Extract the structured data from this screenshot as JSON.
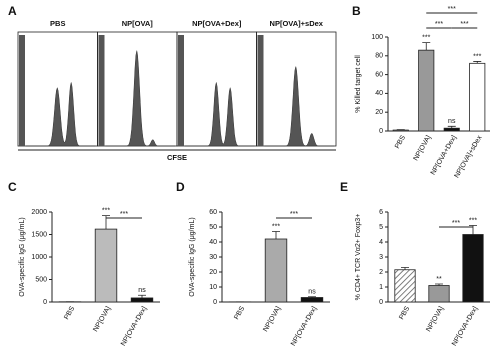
{
  "chart_data": [
    {
      "panel": "A",
      "type": "flow",
      "samples": [
        "PBS",
        "NP[OVA]",
        "NP[OVA+Dex]",
        "NP[OVA]+sDex"
      ],
      "xlabel": "CFSE"
    },
    {
      "panel": "B",
      "type": "bar",
      "ylabel": "% Killed target cell",
      "categories": [
        "PBS",
        "NP[OVA]",
        "NP[OVA+Dex]",
        "NP[OVA]+sDex"
      ],
      "values": [
        1,
        86,
        3,
        72
      ],
      "errors": [
        0.5,
        8,
        2,
        2
      ],
      "annotations": [
        null,
        "***",
        "ns",
        "***"
      ],
      "colors": [
        "#ffffff",
        "#999999",
        "#111111",
        "#ffffff"
      ],
      "ylim": [
        0,
        100
      ],
      "yticks": [
        0,
        20,
        40,
        60,
        80,
        100
      ],
      "brackets": [
        {
          "between": [
            "NP[OVA]",
            "NP[OVA]+sDex"
          ],
          "label": "***"
        },
        {
          "between": [
            "NP[OVA]",
            "NP[OVA+Dex]"
          ],
          "label": "***"
        },
        {
          "between": [
            "NP[OVA+Dex]",
            "NP[OVA]+sDex"
          ],
          "label": "***"
        }
      ]
    },
    {
      "panel": "C",
      "type": "bar",
      "ylabel": "OVA-specific IgG (μg/mL)",
      "categories": [
        "PBS",
        "NP[OVA]",
        "NP[OVA+Dex]"
      ],
      "values": [
        5,
        1620,
        90
      ],
      "errors": [
        0,
        300,
        60
      ],
      "annotations": [
        null,
        "***",
        "ns"
      ],
      "colors": [
        "#ffffff",
        "#bbbbbb",
        "#111111"
      ],
      "ylim": [
        0,
        2000
      ],
      "yticks": [
        0,
        500,
        1000,
        1500,
        2000
      ],
      "brackets": [
        {
          "between": [
            "NP[OVA]",
            "NP[OVA+Dex]"
          ],
          "label": "***"
        }
      ]
    },
    {
      "panel": "D",
      "type": "bar",
      "ylabel": "OVA-specific IgG (μg/mL)",
      "categories": [
        "PBS",
        "NP[OVA]",
        "NP[OVA+Dex]"
      ],
      "values": [
        0.1,
        42,
        3
      ],
      "errors": [
        0,
        5,
        0.5
      ],
      "annotations": [
        null,
        "***",
        "ns"
      ],
      "colors": [
        "#ffffff",
        "#aaaaaa",
        "#111111"
      ],
      "ylim": [
        0,
        60
      ],
      "yticks": [
        0,
        10,
        20,
        30,
        40,
        50,
        60
      ],
      "brackets": [
        {
          "between": [
            "NP[OVA]",
            "NP[OVA+Dex]"
          ],
          "label": "***"
        }
      ]
    },
    {
      "panel": "E",
      "type": "bar",
      "ylabel": "% CD4+ TCR Vα2+ Foxp3+",
      "categories": [
        "PBS",
        "NP[OVA]",
        "NP[OVA+Dex]"
      ],
      "values": [
        2.15,
        1.1,
        4.5
      ],
      "errors": [
        0.15,
        0.1,
        0.6
      ],
      "annotations": [
        null,
        "**",
        "***"
      ],
      "colors": [
        "hatch",
        "#999999",
        "#111111"
      ],
      "ylim": [
        0,
        6
      ],
      "yticks": [
        0,
        1,
        2,
        3,
        4,
        5,
        6
      ],
      "brackets": [
        {
          "between": [
            "NP[OVA]",
            "NP[OVA+Dex]"
          ],
          "label": "***"
        }
      ]
    }
  ]
}
